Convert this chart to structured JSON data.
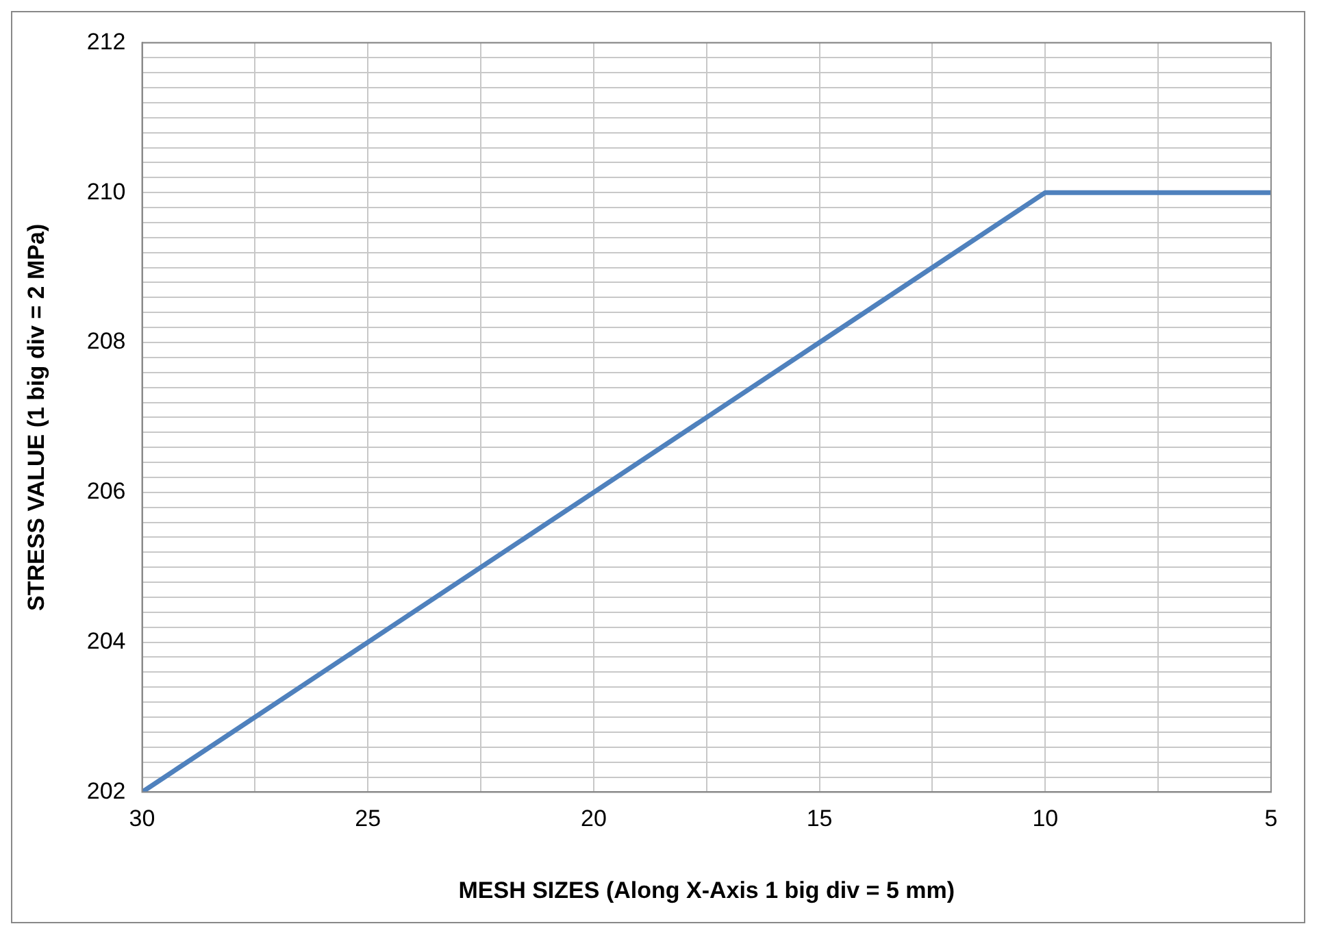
{
  "chart_data": {
    "type": "line",
    "xlabel": "MESH SIZES (Along X-Axis 1 big div = 5 mm)",
    "ylabel": "STRESS VALUE (1 big div = 2 MPa)",
    "x": [
      30,
      25,
      20,
      15,
      10,
      5
    ],
    "series": [
      {
        "color": "#4f81bd",
        "values": [
          202,
          204,
          206,
          208,
          210,
          210
        ]
      }
    ],
    "xlim": [
      30,
      5
    ],
    "xticks": [
      30,
      {
        "value": 27.5,
        "label": null
      },
      25,
      {
        "value": 22.5,
        "label": null
      },
      20,
      {
        "value": 17.5,
        "label": null
      },
      15,
      {
        "value": 12.5,
        "label": null
      },
      10,
      {
        "value": 7.5,
        "label": null
      },
      5
    ],
    "ylim": [
      202,
      212
    ],
    "yticks": [
      202,
      {
        "value": 202.2,
        "label": null
      },
      {
        "value": 202.4,
        "label": null
      },
      {
        "value": 202.6,
        "label": null
      },
      {
        "value": 202.8,
        "label": null
      },
      {
        "value": 203,
        "label": null
      },
      {
        "value": 203.2,
        "label": null
      },
      {
        "value": 203.4,
        "label": null
      },
      {
        "value": 203.6,
        "label": null
      },
      {
        "value": 203.8,
        "label": null
      },
      204,
      {
        "value": 204.2,
        "label": null
      },
      {
        "value": 204.4,
        "label": null
      },
      {
        "value": 204.6,
        "label": null
      },
      {
        "value": 204.8,
        "label": null
      },
      {
        "value": 205,
        "label": null
      },
      {
        "value": 205.2,
        "label": null
      },
      {
        "value": 205.4,
        "label": null
      },
      {
        "value": 205.6,
        "label": null
      },
      {
        "value": 205.8,
        "label": null
      },
      206,
      {
        "value": 206.2,
        "label": null
      },
      {
        "value": 206.4,
        "label": null
      },
      {
        "value": 206.6,
        "label": null
      },
      {
        "value": 206.8,
        "label": null
      },
      {
        "value": 207,
        "label": null
      },
      {
        "value": 207.2,
        "label": null
      },
      {
        "value": 207.4,
        "label": null
      },
      {
        "value": 207.6,
        "label": null
      },
      {
        "value": 207.8,
        "label": null
      },
      208,
      {
        "value": 208.2,
        "label": null
      },
      {
        "value": 208.4,
        "label": null
      },
      {
        "value": 208.6,
        "label": null
      },
      {
        "value": 208.8,
        "label": null
      },
      {
        "value": 209,
        "label": null
      },
      {
        "value": 209.2,
        "label": null
      },
      {
        "value": 209.4,
        "label": null
      },
      {
        "value": 209.6,
        "label": null
      },
      {
        "value": 209.8,
        "label": null
      },
      210,
      {
        "value": 210.2,
        "label": null
      },
      {
        "value": 210.4,
        "label": null
      },
      {
        "value": 210.6,
        "label": null
      },
      {
        "value": 210.8,
        "label": null
      },
      {
        "value": 211,
        "label": null
      },
      {
        "value": 211.2,
        "label": null
      },
      {
        "value": 211.4,
        "label": null
      },
      {
        "value": 211.6,
        "label": null
      },
      {
        "value": 211.8,
        "label": null
      },
      212
    ],
    "grid": true,
    "legend": false,
    "marker": "none",
    "line_style": "solid"
  }
}
